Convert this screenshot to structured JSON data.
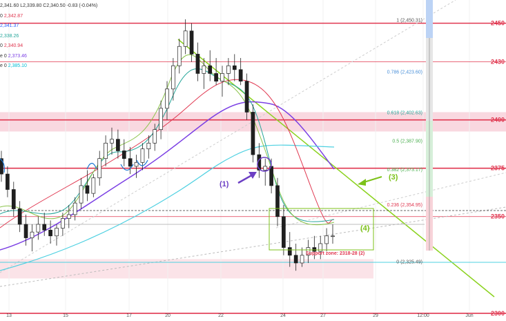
{
  "legend": {
    "ohlc": "2,341.60 L2,339.80 C2,340.50 -0.83 (-0.04%)",
    "rows": [
      {
        "label": "0",
        "value": "2,342.87",
        "color": "#e0364f"
      },
      {
        "label": "",
        "value": "2,341.37",
        "color": "#2962ff"
      },
      {
        "label": "",
        "value": "2,338.26",
        "color": "#26a69a"
      },
      {
        "label": "0",
        "value": "2,340.94",
        "color": "#e0364f"
      },
      {
        "label": "e 0",
        "value": "2,373.46",
        "color": "#7b3fe4"
      },
      {
        "label": "e 0",
        "value": "2,385.10",
        "color": "#00bcd4"
      }
    ]
  },
  "chart_data": {
    "type": "candlestick",
    "symbol_colors": {
      "up": "#26a69a",
      "down": "#2b2b2b",
      "body": "#1f1f1f"
    },
    "x_ticks": [
      "13",
      "15",
      "17",
      "20",
      "22",
      "24",
      "27",
      "29",
      "12:00",
      "Jun"
    ],
    "y_ticks_right": [
      "2450",
      "2430",
      "2400",
      "2375",
      "2350",
      "2300"
    ],
    "price_range": [
      2296,
      2462
    ],
    "horizontal_levels": [
      {
        "price": 2450,
        "label": "2450",
        "color": "#e0364f",
        "weight": "bold"
      },
      {
        "price": 2430,
        "label": "2430",
        "color": "#e0364f",
        "weight": "normal"
      },
      {
        "price": 2400,
        "label": "2400",
        "color": "#e0364f",
        "weight": "bold"
      },
      {
        "price": 2375,
        "label": "2375",
        "color": "#e0364f",
        "weight": "bold"
      },
      {
        "price": 2350,
        "label": "2350",
        "color": "#e0364f",
        "weight": "normal"
      },
      {
        "price": 2300,
        "label": "2300",
        "color": "#e0364f",
        "weight": "bold"
      }
    ],
    "zones": [
      {
        "name": "resistance",
        "from": 2394,
        "to": 2404,
        "color": "#f9d8e0"
      },
      {
        "name": "support",
        "from": 2318,
        "to": 2328,
        "color": "#fbe3e8"
      }
    ],
    "fibonacci": [
      {
        "ratio": "1",
        "price": "2,450.31",
        "color": "#555555"
      },
      {
        "ratio": "0.786",
        "price": "2,423.60",
        "color": "#4a90d9"
      },
      {
        "ratio": "0.618",
        "price": "2,402.63",
        "color": "#26a69a"
      },
      {
        "ratio": "0.5",
        "price": "2,387.90",
        "color": "#4caf50"
      },
      {
        "ratio": "0.382",
        "price": "2,373.17",
        "color": "#4caf50"
      },
      {
        "ratio": "0.236",
        "price": "2,354.95",
        "color": "#e0364f"
      },
      {
        "ratio": "0",
        "price": "2,325.49",
        "color": "#555555"
      }
    ],
    "annotations": [
      {
        "id": "wave-1",
        "text": "(1)",
        "color": "#6c3fc4"
      },
      {
        "id": "wave-3",
        "text": "(3)",
        "color": "#7cc218"
      },
      {
        "id": "wave-4",
        "text": "(4)",
        "color": "#7cc218"
      },
      {
        "id": "support-label",
        "text": "Support zone: 2318-28 (2)",
        "color": "#e0364f"
      }
    ],
    "ohlc": [
      [
        2380,
        2384,
        2368,
        2372
      ],
      [
        2372,
        2376,
        2360,
        2364
      ],
      [
        2364,
        2368,
        2350,
        2354
      ],
      [
        2354,
        2358,
        2342,
        2346
      ],
      [
        2346,
        2351,
        2335,
        2339
      ],
      [
        2339,
        2346,
        2332,
        2342
      ],
      [
        2342,
        2350,
        2338,
        2346
      ],
      [
        2346,
        2352,
        2340,
        2343
      ],
      [
        2343,
        2348,
        2336,
        2340
      ],
      [
        2340,
        2346,
        2335,
        2344
      ],
      [
        2344,
        2352,
        2340,
        2349
      ],
      [
        2349,
        2356,
        2344,
        2351
      ],
      [
        2351,
        2360,
        2348,
        2357
      ],
      [
        2357,
        2370,
        2354,
        2366
      ],
      [
        2366,
        2374,
        2358,
        2362
      ],
      [
        2362,
        2372,
        2360,
        2370
      ],
      [
        2370,
        2384,
        2366,
        2380
      ],
      [
        2380,
        2392,
        2376,
        2388
      ],
      [
        2388,
        2396,
        2382,
        2390
      ],
      [
        2390,
        2395,
        2380,
        2384
      ],
      [
        2384,
        2390,
        2376,
        2380
      ],
      [
        2380,
        2386,
        2372,
        2376
      ],
      [
        2376,
        2382,
        2370,
        2378
      ],
      [
        2378,
        2388,
        2374,
        2385
      ],
      [
        2385,
        2392,
        2380,
        2388
      ],
      [
        2388,
        2398,
        2384,
        2395
      ],
      [
        2395,
        2410,
        2390,
        2406
      ],
      [
        2406,
        2420,
        2400,
        2416
      ],
      [
        2416,
        2432,
        2410,
        2428
      ],
      [
        2428,
        2442,
        2424,
        2438
      ],
      [
        2438,
        2452,
        2434,
        2446
      ],
      [
        2446,
        2450,
        2430,
        2434
      ],
      [
        2434,
        2440,
        2420,
        2424
      ],
      [
        2424,
        2432,
        2416,
        2428
      ],
      [
        2428,
        2436,
        2420,
        2424
      ],
      [
        2424,
        2432,
        2418,
        2420
      ],
      [
        2420,
        2428,
        2412,
        2424
      ],
      [
        2424,
        2432,
        2418,
        2428
      ],
      [
        2428,
        2434,
        2420,
        2426
      ],
      [
        2426,
        2432,
        2418,
        2420
      ],
      [
        2420,
        2424,
        2400,
        2404
      ],
      [
        2404,
        2408,
        2378,
        2382
      ],
      [
        2382,
        2388,
        2370,
        2374
      ],
      [
        2374,
        2380,
        2366,
        2376
      ],
      [
        2376,
        2380,
        2362,
        2366
      ],
      [
        2366,
        2370,
        2345,
        2350
      ],
      [
        2350,
        2356,
        2330,
        2334
      ],
      [
        2334,
        2342,
        2324,
        2330
      ],
      [
        2330,
        2336,
        2322,
        2326
      ],
      [
        2326,
        2334,
        2324,
        2330
      ],
      [
        2330,
        2338,
        2326,
        2334
      ],
      [
        2334,
        2340,
        2328,
        2332
      ],
      [
        2332,
        2340,
        2328,
        2336
      ],
      [
        2336,
        2344,
        2332,
        2340
      ],
      [
        2340,
        2346,
        2336,
        2340
      ]
    ]
  }
}
